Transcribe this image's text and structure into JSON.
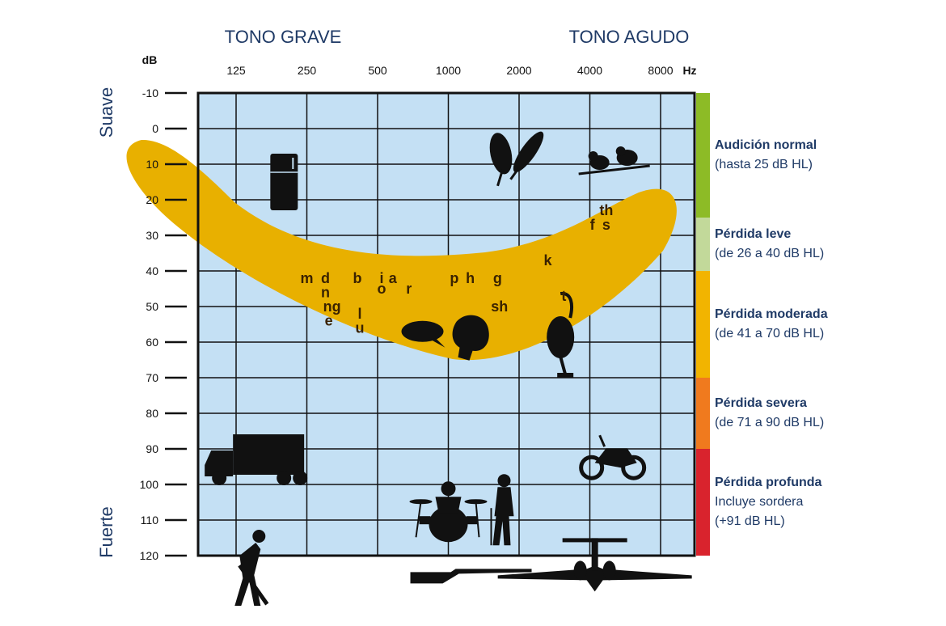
{
  "chart_data": {
    "type": "audiogram",
    "header_left": "TONO GRAVE",
    "header_right": "TONO AGUDO",
    "y_unit": "dB",
    "x_unit": "Hz",
    "x_ticks": [
      "125",
      "250",
      "500",
      "1000",
      "2000",
      "4000",
      "8000"
    ],
    "y_ticks": [
      -10,
      0,
      10,
      20,
      30,
      40,
      50,
      60,
      70,
      80,
      90,
      100,
      110,
      120
    ],
    "ylim": [
      -10,
      120
    ],
    "top_label": "Suave",
    "bottom_label": "Fuerte",
    "grid": true,
    "speech_banana": {
      "color": "#e8b000"
    },
    "phonemes": [
      {
        "t": "m",
        "f": 250,
        "db": 42
      },
      {
        "t": "d",
        "f": 300,
        "db": 42
      },
      {
        "t": "n",
        "f": 300,
        "db": 46
      },
      {
        "t": "ng",
        "f": 320,
        "db": 50
      },
      {
        "t": "e",
        "f": 310,
        "db": 54
      },
      {
        "t": "b",
        "f": 410,
        "db": 42
      },
      {
        "t": "l",
        "f": 420,
        "db": 52
      },
      {
        "t": "u",
        "f": 420,
        "db": 56
      },
      {
        "t": "i",
        "f": 520,
        "db": 42
      },
      {
        "t": "a",
        "f": 580,
        "db": 42
      },
      {
        "t": "o",
        "f": 520,
        "db": 45
      },
      {
        "t": "r",
        "f": 680,
        "db": 45
      },
      {
        "t": "p",
        "f": 1060,
        "db": 42
      },
      {
        "t": "h",
        "f": 1240,
        "db": 42
      },
      {
        "t": "g",
        "f": 1620,
        "db": 42
      },
      {
        "t": "sh",
        "f": 1650,
        "db": 50
      },
      {
        "t": "k",
        "f": 2650,
        "db": 37
      },
      {
        "t": "t",
        "f": 3100,
        "db": 47
      },
      {
        "t": "f",
        "f": 4100,
        "db": 27
      },
      {
        "t": "th",
        "f": 4700,
        "db": 23
      },
      {
        "t": "s",
        "f": 4700,
        "db": 27
      }
    ],
    "sounds": [
      {
        "name": "refrigerator",
        "f": 200,
        "db": 15
      },
      {
        "name": "leaves",
        "f": 1900,
        "db": 7
      },
      {
        "name": "birds",
        "f": 5000,
        "db": 10
      },
      {
        "name": "speech",
        "f": 1000,
        "db": 57
      },
      {
        "name": "vacuum",
        "f": 3000,
        "db": 60
      },
      {
        "name": "truck",
        "f": 160,
        "db": 95
      },
      {
        "name": "motorcycle",
        "f": 5000,
        "db": 93
      },
      {
        "name": "drums",
        "f": 1000,
        "db": 108
      },
      {
        "name": "singer",
        "f": 1700,
        "db": 108
      },
      {
        "name": "jackhammer",
        "f": 140,
        "db": 125
      },
      {
        "name": "rifle",
        "f": 1200,
        "db": 126
      },
      {
        "name": "airplane",
        "f": 4200,
        "db": 126
      }
    ]
  },
  "legend": [
    {
      "title": "Audición normal",
      "sub": "(hasta 25 dB HL)",
      "color": "#8dbb26",
      "from": -10,
      "to": 25
    },
    {
      "title": "Pérdida leve",
      "sub": "(de 26 a 40 dB HL)",
      "color": "#c2d99a",
      "from": 25,
      "to": 40
    },
    {
      "title": "Pérdida moderada",
      "sub": "(de 41 a 70 dB HL)",
      "color": "#f2b400",
      "from": 40,
      "to": 70
    },
    {
      "title": "Pérdida severa",
      "sub": "(de 71 a 90 dB HL)",
      "color": "#f07a1e",
      "from": 70,
      "to": 90
    },
    {
      "title": "Pérdida profunda",
      "sub": "Incluye sordera",
      "sub2": "(+91 dB HL)",
      "color": "#d9232d",
      "from": 90,
      "to": 120
    }
  ]
}
